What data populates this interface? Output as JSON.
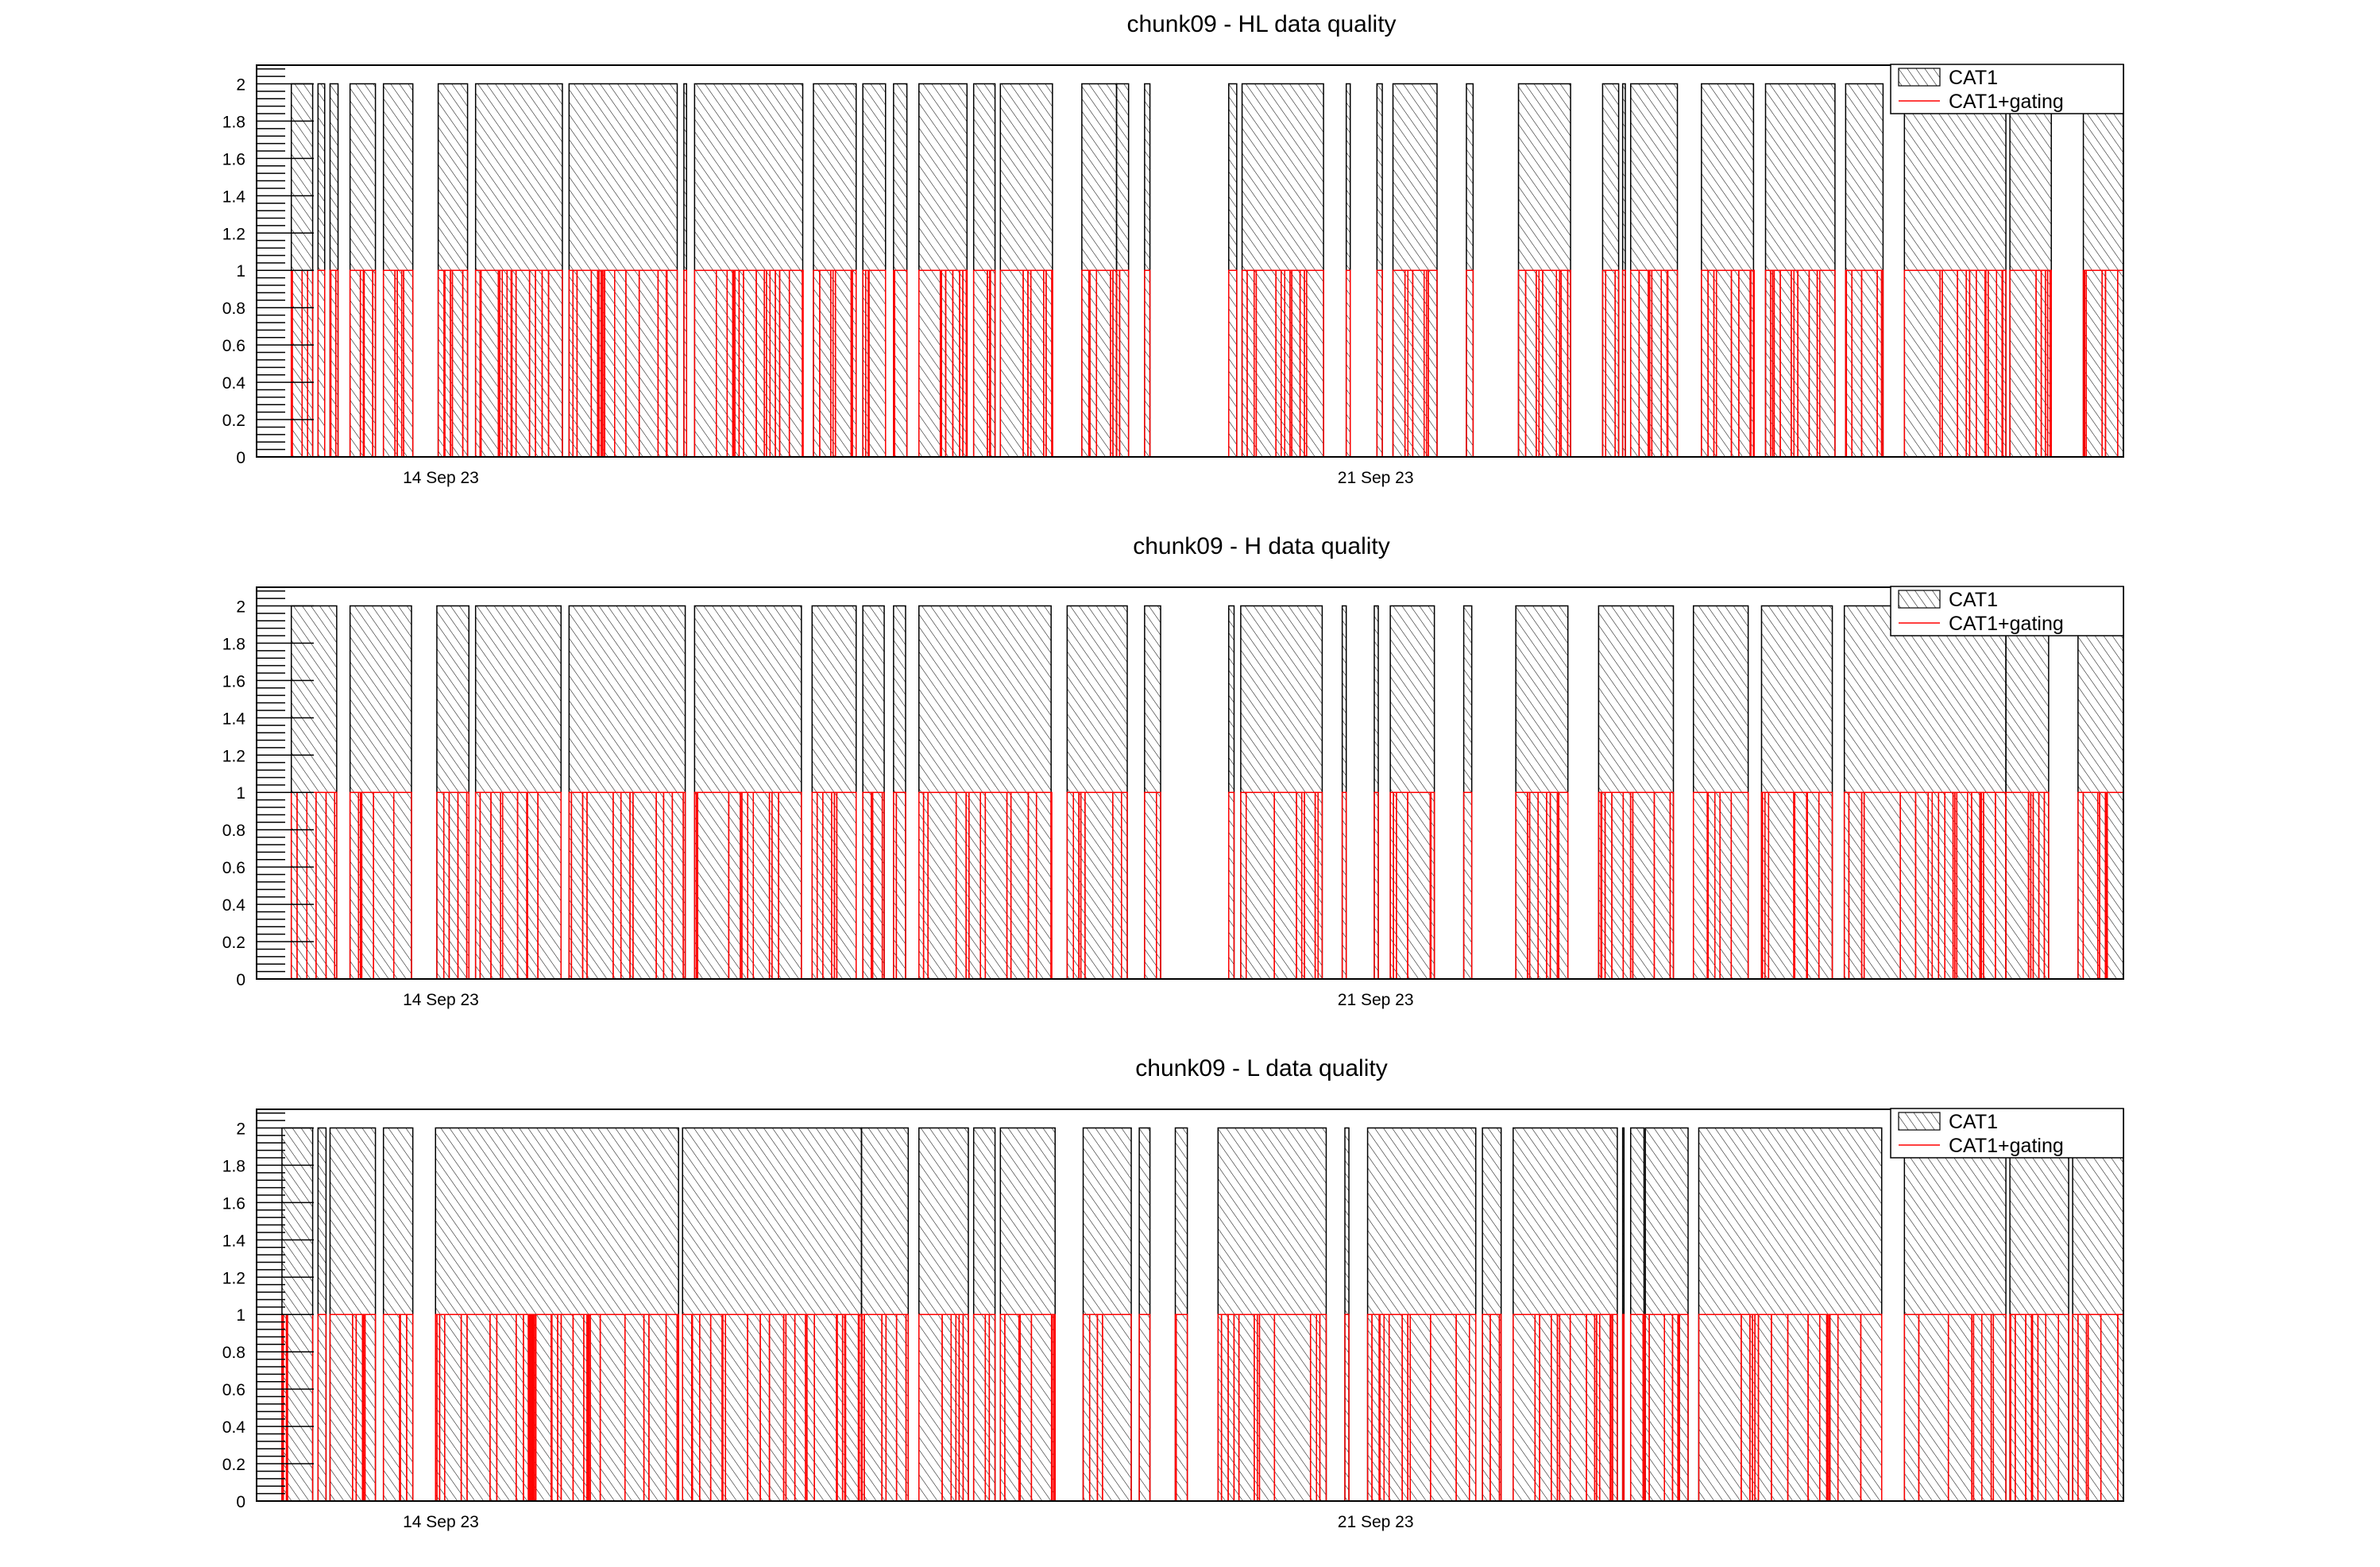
{
  "chart_data": [
    {
      "type": "bar",
      "title": "chunk09 - HL data quality",
      "xlabel": "",
      "ylabel": "",
      "x_unit": "days since 14 Sep 23 00:00",
      "xlim": [
        -1.38,
        12.6
      ],
      "ylim": [
        0,
        2.1
      ],
      "y_ticks": [
        "0",
        "0.2",
        "0.4",
        "0.6",
        "0.8",
        "1",
        "1.2",
        "1.4",
        "1.6",
        "1.8",
        "2"
      ],
      "x_ticks": [
        {
          "value": 0,
          "label": "14 Sep 23"
        },
        {
          "value": 7,
          "label": "21 Sep 23"
        }
      ],
      "grid": false,
      "legend": {
        "position": "top-right",
        "entries": [
          {
            "label": "CAT1",
            "style": "hatched-box"
          },
          {
            "label": "CAT1+gating",
            "style": "red-line"
          }
        ]
      },
      "series": [
        {
          "name": "CAT1",
          "value": 2,
          "color": "#000000",
          "segments": [
            [
              -1.12,
              -0.96
            ],
            [
              -0.92,
              -0.87
            ],
            [
              -0.83,
              -0.77
            ],
            [
              -0.68,
              -0.49
            ],
            [
              -0.43,
              -0.21
            ],
            [
              -0.02,
              0.2
            ],
            [
              0.26,
              0.91
            ],
            [
              0.96,
              1.77
            ],
            [
              1.82,
              1.84
            ],
            [
              1.9,
              2.71
            ],
            [
              2.79,
              3.11
            ],
            [
              3.16,
              3.33
            ],
            [
              3.39,
              3.49
            ],
            [
              3.58,
              3.94
            ],
            [
              3.99,
              4.15
            ],
            [
              4.19,
              4.58
            ],
            [
              4.8,
              5.06
            ],
            [
              5.06,
              5.15
            ],
            [
              5.27,
              5.31
            ],
            [
              5.9,
              5.96
            ],
            [
              6.0,
              6.61
            ],
            [
              6.78,
              6.81
            ],
            [
              7.01,
              7.05
            ],
            [
              7.13,
              7.46
            ],
            [
              7.68,
              7.73
            ],
            [
              8.07,
              8.46
            ],
            [
              8.7,
              8.82
            ],
            [
              8.85,
              8.87
            ],
            [
              8.91,
              9.26
            ],
            [
              9.44,
              9.83
            ],
            [
              9.92,
              10.44
            ],
            [
              10.52,
              10.8
            ],
            [
              10.96,
              11.72
            ],
            [
              11.75,
              12.06
            ],
            [
              12.3,
              12.6
            ]
          ]
        },
        {
          "name": "CAT1+gating",
          "value": 1,
          "color": "#ff0000",
          "subsegments_per_segment": [
            4,
            1,
            3,
            5,
            5,
            6,
            14,
            18,
            1,
            16,
            7,
            4,
            2,
            8,
            4,
            7,
            6,
            2,
            1,
            1,
            12,
            1,
            1,
            7,
            1,
            9,
            3,
            1,
            8,
            9,
            11,
            6,
            13,
            6,
            6
          ]
        }
      ]
    },
    {
      "type": "bar",
      "title": "chunk09 - H data quality",
      "xlabel": "",
      "ylabel": "",
      "x_unit": "days since 14 Sep 23 00:00",
      "xlim": [
        -1.38,
        12.6
      ],
      "ylim": [
        0,
        2.1
      ],
      "y_ticks": [
        "0",
        "0.2",
        "0.4",
        "0.6",
        "0.8",
        "1",
        "1.2",
        "1.4",
        "1.6",
        "1.8",
        "2"
      ],
      "x_ticks": [
        {
          "value": 0,
          "label": "14 Sep 23"
        },
        {
          "value": 7,
          "label": "21 Sep 23"
        }
      ],
      "grid": false,
      "legend": {
        "position": "top-right",
        "entries": [
          {
            "label": "CAT1",
            "style": "hatched-box"
          },
          {
            "label": "CAT1+gating",
            "style": "red-line"
          }
        ]
      },
      "series": [
        {
          "name": "CAT1",
          "value": 2,
          "color": "#000000",
          "segments": [
            [
              -1.12,
              -0.78
            ],
            [
              -0.68,
              -0.22
            ],
            [
              -0.03,
              0.21
            ],
            [
              0.26,
              0.9
            ],
            [
              0.96,
              1.83
            ],
            [
              1.9,
              2.7
            ],
            [
              2.78,
              3.11
            ],
            [
              3.16,
              3.32
            ],
            [
              3.39,
              3.48
            ],
            [
              3.58,
              4.57
            ],
            [
              4.69,
              5.14
            ],
            [
              5.27,
              5.39
            ],
            [
              5.9,
              5.94
            ],
            [
              5.99,
              6.6
            ],
            [
              6.75,
              6.78
            ],
            [
              6.99,
              7.02
            ],
            [
              7.11,
              7.44
            ],
            [
              7.66,
              7.72
            ],
            [
              8.05,
              8.44
            ],
            [
              8.67,
              9.23
            ],
            [
              9.38,
              9.79
            ],
            [
              9.89,
              10.42
            ],
            [
              10.51,
              11.72
            ],
            [
              11.72,
              12.04
            ],
            [
              12.26,
              12.6
            ]
          ]
        },
        {
          "name": "CAT1+gating",
          "value": 1,
          "color": "#ff0000",
          "subsegments_per_segment": [
            6,
            6,
            5,
            9,
            12,
            11,
            6,
            4,
            2,
            13,
            7,
            2,
            1,
            8,
            1,
            1,
            6,
            1,
            8,
            10,
            7,
            9,
            20,
            6,
            7
          ]
        }
      ]
    },
    {
      "type": "bar",
      "title": "chunk09 - L data quality",
      "xlabel": "",
      "ylabel": "",
      "x_unit": "days since 14 Sep 23 00:00",
      "xlim": [
        -1.38,
        12.6
      ],
      "ylim": [
        0,
        2.1
      ],
      "y_ticks": [
        "0",
        "0.2",
        "0.4",
        "0.6",
        "0.8",
        "1",
        "1.2",
        "1.4",
        "1.6",
        "1.8",
        "2"
      ],
      "x_ticks": [
        {
          "value": 0,
          "label": "14 Sep 23"
        },
        {
          "value": 7,
          "label": "21 Sep 23"
        }
      ],
      "grid": false,
      "legend": {
        "position": "top-right",
        "entries": [
          {
            "label": "CAT1",
            "style": "hatched-box"
          },
          {
            "label": "CAT1+gating",
            "style": "red-line"
          }
        ]
      },
      "series": [
        {
          "name": "CAT1",
          "value": 2,
          "color": "#000000",
          "segments": [
            [
              -1.19,
              -0.96
            ],
            [
              -0.92,
              -0.86
            ],
            [
              -0.83,
              -0.49
            ],
            [
              -0.43,
              -0.21
            ],
            [
              -0.04,
              1.78
            ],
            [
              1.81,
              3.15
            ],
            [
              3.15,
              3.5
            ],
            [
              3.58,
              3.95
            ],
            [
              3.99,
              4.15
            ],
            [
              4.19,
              4.6
            ],
            [
              4.81,
              5.17
            ],
            [
              5.23,
              5.31
            ],
            [
              5.5,
              5.59
            ],
            [
              5.82,
              6.63
            ],
            [
              6.77,
              6.8
            ],
            [
              6.94,
              7.75
            ],
            [
              7.8,
              7.94
            ],
            [
              8.03,
              8.81
            ],
            [
              8.85,
              8.86
            ],
            [
              8.91,
              9.01
            ],
            [
              9.02,
              9.34
            ],
            [
              9.42,
              10.79
            ],
            [
              10.96,
              11.72
            ],
            [
              11.75,
              12.19
            ],
            [
              12.22,
              12.6
            ]
          ]
        },
        {
          "name": "CAT1+gating",
          "value": 1,
          "color": "#ff0000",
          "subsegments_per_segment": [
            4,
            1,
            6,
            4,
            34,
            25,
            6,
            6,
            3,
            8,
            4,
            1,
            2,
            12,
            1,
            12,
            3,
            14,
            1,
            2,
            7,
            16,
            8,
            9,
            6
          ]
        }
      ]
    }
  ]
}
